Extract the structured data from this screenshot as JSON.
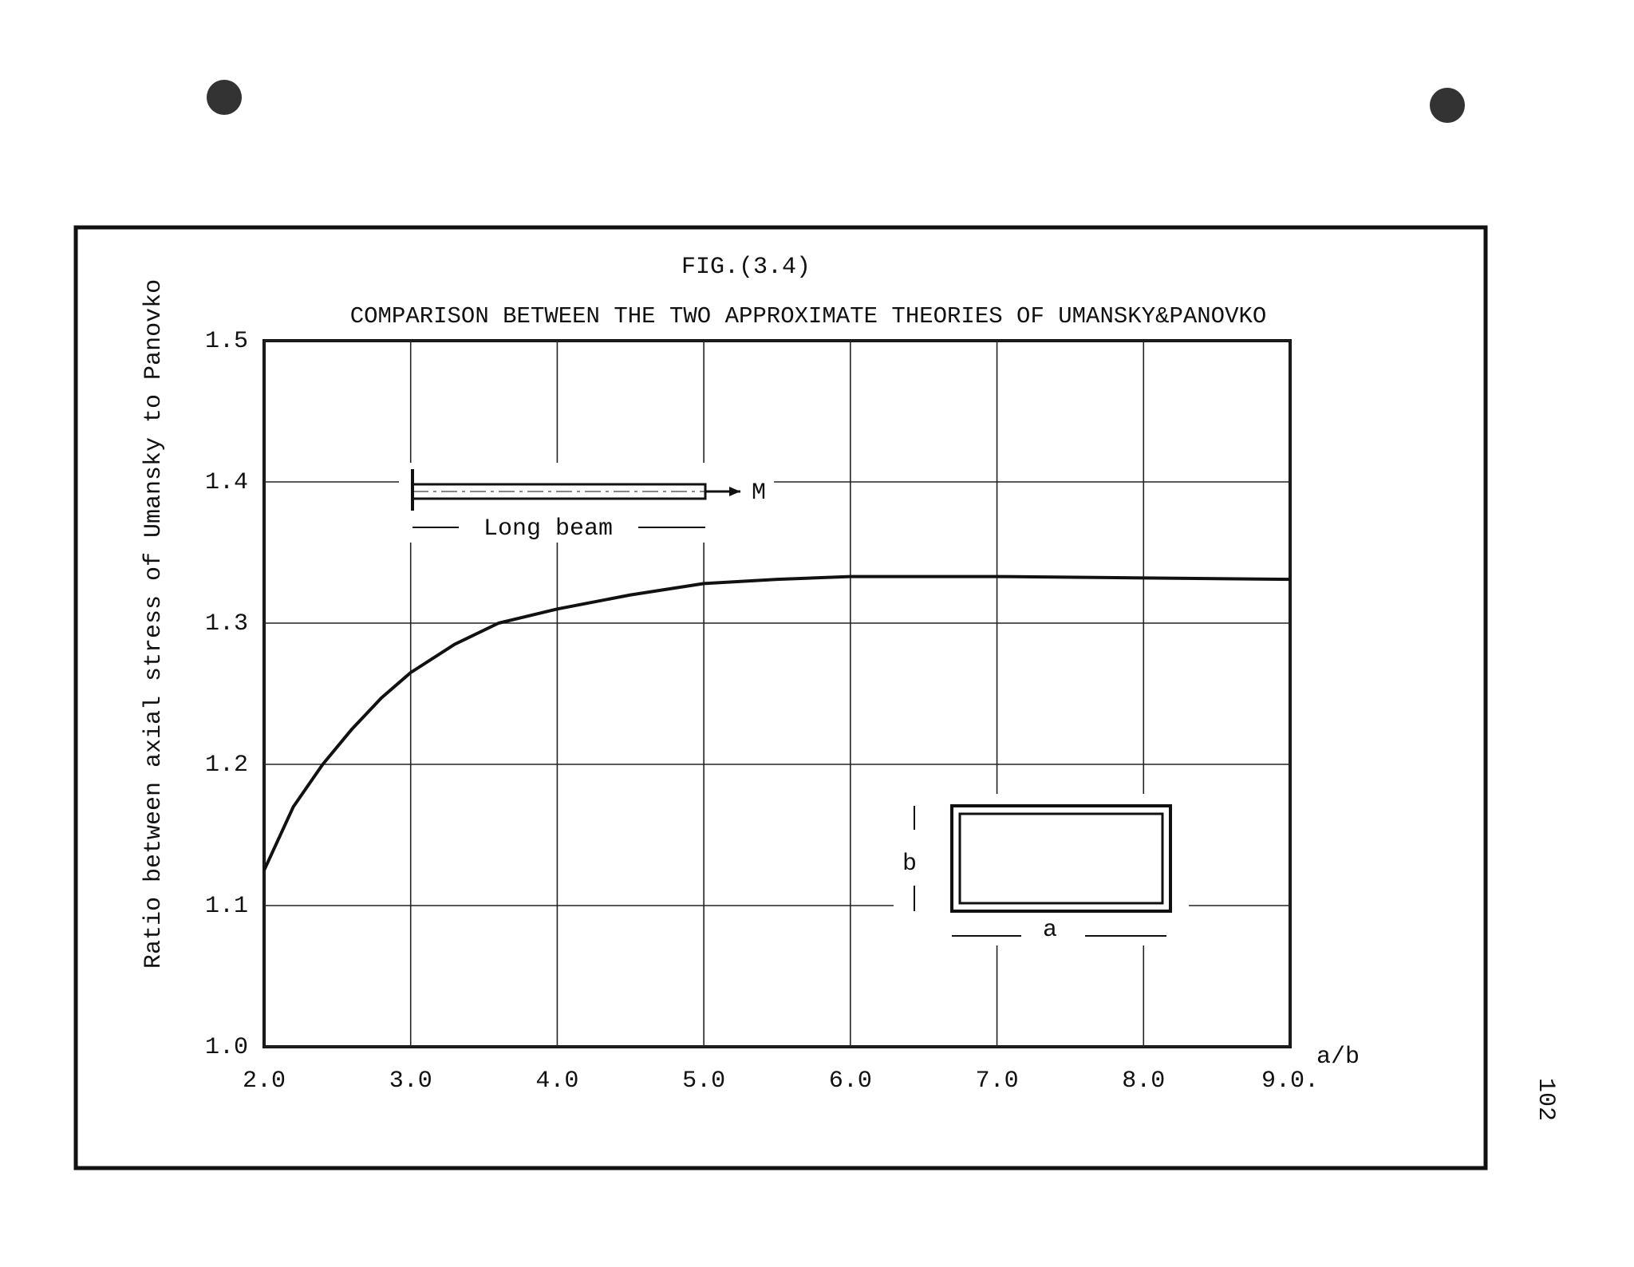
{
  "chart_data": {
    "type": "line",
    "title": "FIG.(3.4)",
    "subtitle": "COMPARISON BETWEEN THE TWO APPROXIMATE THEORIES OF UMANSKY&PANOVKO",
    "y_label": "Ratio between axial stress of Umansky to Panovko",
    "x_label": "a/b",
    "annotations": [
      "Long beam",
      "M",
      "b",
      "a"
    ],
    "x": [
      2.0,
      2.2,
      2.4,
      2.6,
      2.8,
      3.0,
      3.3,
      3.6,
      4.0,
      4.5,
      5.0,
      5.5,
      6.0,
      7.0,
      8.0,
      9.0
    ],
    "series": [
      {
        "name": "Ratio",
        "color": "#111111",
        "values": [
          1.125,
          1.17,
          1.2,
          1.225,
          1.247,
          1.265,
          1.285,
          1.3,
          1.31,
          1.32,
          1.328,
          1.331,
          1.333,
          1.333,
          1.332,
          1.331
        ]
      }
    ],
    "xlim": [
      2.0,
      9.0
    ],
    "ylim": [
      1.0,
      1.5
    ],
    "xticks": [
      {
        "value": 2,
        "label": "2.0"
      },
      {
        "value": 3,
        "label": "3.0"
      },
      {
        "value": 4,
        "label": "4.0"
      },
      {
        "value": 5,
        "label": "5.0"
      },
      {
        "value": 6,
        "label": "6.0"
      },
      {
        "value": 7,
        "label": "7.0"
      },
      {
        "value": 8,
        "label": "8.0"
      },
      {
        "value": 9,
        "label": "9.0."
      }
    ],
    "yticks": [
      {
        "value": 1,
        "label": "1.0"
      },
      1.1,
      1.2,
      1.3,
      1.4,
      1.5
    ],
    "grid": true
  },
  "page_number": "102"
}
